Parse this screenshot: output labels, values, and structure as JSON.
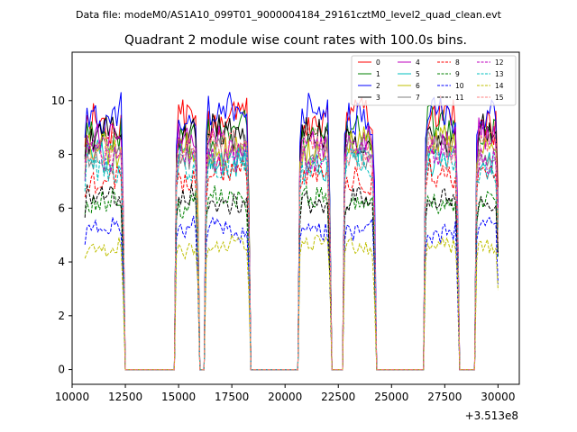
{
  "header": {
    "data_file_text": "Data file: modeM0/AS1A10_099T01_9000004184_29161cztM0_level2_quad_clean.evt"
  },
  "chart_data": {
    "type": "line",
    "title": "Quadrant 2 module wise count rates with 100.0s bins.",
    "xlabel": "",
    "ylabel": "",
    "x_offset_text": "+3.513e8",
    "xlim": [
      10000,
      31000
    ],
    "ylim": [
      -0.55,
      11.8
    ],
    "xticks": [
      10000,
      12500,
      15000,
      17500,
      20000,
      22500,
      25000,
      27500,
      30000
    ],
    "xtick_labels": [
      "10000",
      "12500",
      "15000",
      "17500",
      "20000",
      "22500",
      "25000",
      "27500",
      "30000"
    ],
    "yticks": [
      0,
      2,
      4,
      6,
      8,
      10
    ],
    "ytick_labels": [
      "0",
      "2",
      "4",
      "6",
      "8",
      "10"
    ],
    "grid": false,
    "legend_position": "top-right",
    "legend_columns": 4,
    "bin_width": 100,
    "segments": [
      [
        10600,
        12450
      ],
      [
        14850,
        15950
      ],
      [
        16250,
        18300
      ],
      [
        20650,
        22100
      ],
      [
        22750,
        24200
      ],
      [
        26600,
        28150
      ],
      [
        28950,
        30050
      ]
    ],
    "series": [
      {
        "name": "0",
        "color": "#ff0000",
        "style": "solid",
        "level": 9.3
      },
      {
        "name": "1",
        "color": "#008000",
        "style": "solid",
        "level": 8.9
      },
      {
        "name": "2",
        "color": "#0000ff",
        "style": "solid",
        "level": 9.5
      },
      {
        "name": "3",
        "color": "#000000",
        "style": "solid",
        "level": 8.7
      },
      {
        "name": "4",
        "color": "#bf00bf",
        "style": "solid",
        "level": 8.5
      },
      {
        "name": "5",
        "color": "#00bfbf",
        "style": "solid",
        "level": 7.8
      },
      {
        "name": "6",
        "color": "#bfbf00",
        "style": "solid",
        "level": 8.3
      },
      {
        "name": "7",
        "color": "#808080",
        "style": "solid",
        "level": 8.1
      },
      {
        "name": "8",
        "color": "#ff0000",
        "style": "dashed",
        "level": 7.2
      },
      {
        "name": "9",
        "color": "#008000",
        "style": "dashed",
        "level": 6.2
      },
      {
        "name": "10",
        "color": "#0000ff",
        "style": "dashed",
        "level": 5.2
      },
      {
        "name": "11",
        "color": "#000000",
        "style": "dashed",
        "level": 6.3
      },
      {
        "name": "12",
        "color": "#bf00bf",
        "style": "dashed",
        "level": 8.0
      },
      {
        "name": "13",
        "color": "#00bfbf",
        "style": "dashed",
        "level": 7.6
      },
      {
        "name": "14",
        "color": "#bfbf00",
        "style": "dashed",
        "level": 4.6
      },
      {
        "name": "15",
        "color": "#ff8080",
        "style": "dashed",
        "level": 8.2
      }
    ]
  }
}
